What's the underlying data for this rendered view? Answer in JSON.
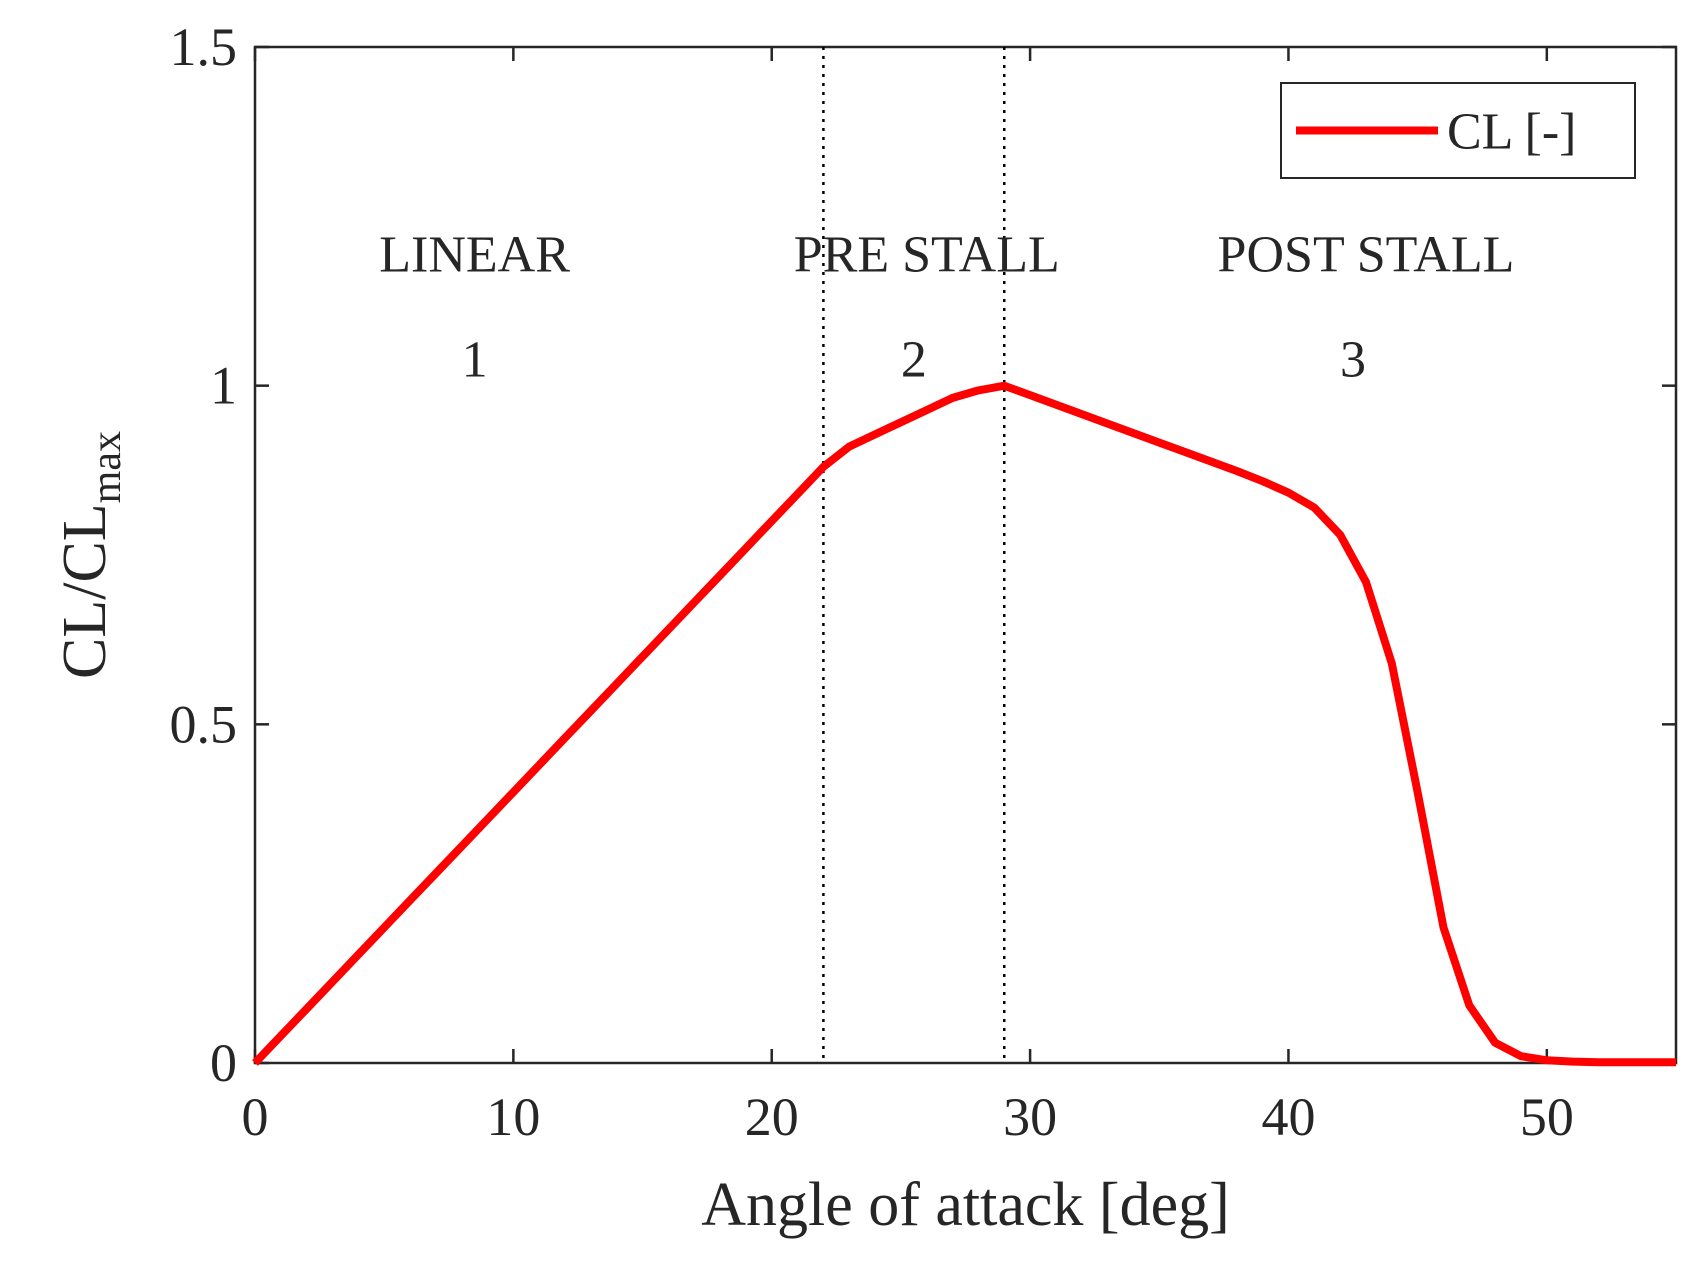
{
  "chart_data": {
    "type": "line",
    "title": "",
    "xlabel": "Angle of attack [deg]",
    "ylabel_main": "CL/CL",
    "ylabel_sub": "max",
    "xlim": [
      0,
      55
    ],
    "ylim": [
      0,
      1.5
    ],
    "xticks": [
      0,
      10,
      20,
      30,
      40,
      50
    ],
    "xtick_labels": [
      "0",
      "10",
      "20",
      "30",
      "40",
      "50"
    ],
    "yticks": [
      0,
      0.5,
      1,
      1.5
    ],
    "ytick_labels": [
      "0",
      "0.5",
      "1",
      "1.5"
    ],
    "grid": false,
    "legend_position": "top-right",
    "series": [
      {
        "name": "CL [-]",
        "color": "#ff0000",
        "x": [
          0,
          1,
          2,
          3,
          4,
          5,
          6,
          7,
          8,
          9,
          10,
          11,
          12,
          13,
          14,
          15,
          16,
          17,
          18,
          19,
          20,
          21,
          22,
          23,
          24,
          25,
          26,
          27,
          28,
          29,
          30,
          31,
          32,
          33,
          34,
          35,
          36,
          37,
          38,
          39,
          40,
          41,
          42,
          43,
          44,
          45,
          46,
          47,
          48,
          49,
          50,
          51,
          52,
          53,
          54,
          55
        ],
        "y": [
          0,
          0.04,
          0.08,
          0.12,
          0.16,
          0.2,
          0.24,
          0.28,
          0.32,
          0.36,
          0.4,
          0.44,
          0.48,
          0.52,
          0.56,
          0.6,
          0.64,
          0.68,
          0.72,
          0.76,
          0.8,
          0.84,
          0.88,
          0.91,
          0.928,
          0.946,
          0.964,
          0.982,
          0.993,
          1.0,
          0.986,
          0.972,
          0.958,
          0.944,
          0.93,
          0.916,
          0.902,
          0.888,
          0.874,
          0.859,
          0.842,
          0.82,
          0.78,
          0.71,
          0.59,
          0.4,
          0.2,
          0.085,
          0.03,
          0.01,
          0.004,
          0.002,
          0.001,
          0.001,
          0.001,
          0.001
        ]
      }
    ],
    "vlines": [
      {
        "x": 22,
        "style": "dotted",
        "color": "#000000"
      },
      {
        "x": 29,
        "style": "dotted",
        "color": "#000000"
      }
    ],
    "annotations": [
      {
        "text": "LINEAR",
        "x": 8.5,
        "y": 1.195
      },
      {
        "text": "1",
        "x": 8.5,
        "y": 1.04
      },
      {
        "text": "PRE STALL",
        "x": 26,
        "y": 1.195
      },
      {
        "text": "2",
        "x": 25.5,
        "y": 1.04
      },
      {
        "text": "POST STALL",
        "x": 43,
        "y": 1.195
      },
      {
        "text": "3",
        "x": 42.5,
        "y": 1.04
      }
    ]
  }
}
